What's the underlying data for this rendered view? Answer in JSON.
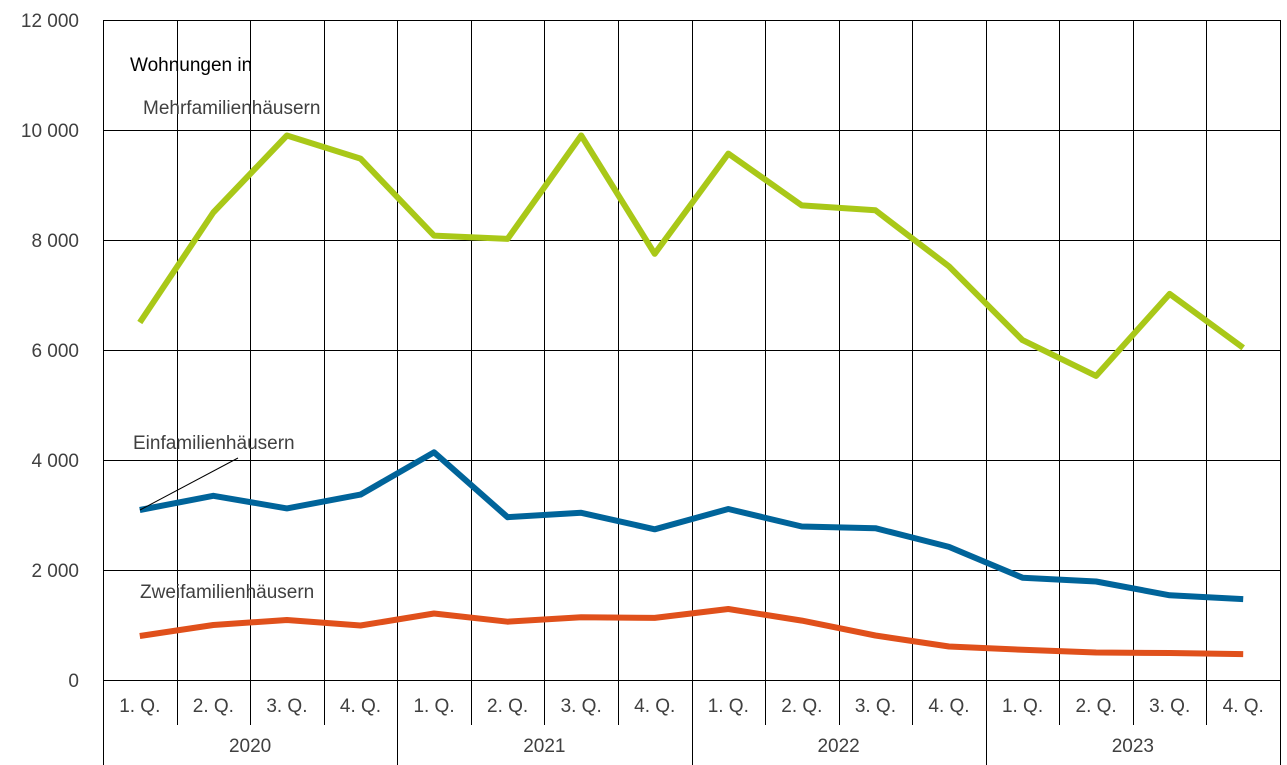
{
  "chart_data": {
    "type": "line",
    "categories": [
      "1. Q.",
      "2. Q.",
      "3. Q.",
      "4. Q.",
      "1. Q.",
      "2. Q.",
      "3. Q.",
      "4. Q.",
      "1. Q.",
      "2. Q.",
      "3. Q.",
      "4. Q.",
      "1. Q.",
      "2. Q.",
      "3. Q.",
      "4. Q."
    ],
    "groups": [
      "2020",
      "2021",
      "2022",
      "2023"
    ],
    "ylim": [
      0,
      12000
    ],
    "yticks": [
      0,
      2000,
      4000,
      6000,
      8000,
      10000,
      12000
    ],
    "ytick_labels": [
      "0",
      "2 000",
      "4 000",
      "6 000",
      "8 000",
      "10 000",
      "12 000"
    ],
    "grid": true,
    "annotation_title": "Wohnungen in",
    "series": [
      {
        "name": "Mehrfamilienhäusern",
        "color": "#a9c818",
        "values": [
          6500,
          8500,
          9900,
          9480,
          8080,
          8020,
          9900,
          7750,
          9570,
          8630,
          8540,
          7520,
          6180,
          5530,
          7020,
          6040
        ]
      },
      {
        "name": "Einfamilienhäusern",
        "color": "#00649a",
        "values": [
          3090,
          3350,
          3120,
          3370,
          4140,
          2960,
          3040,
          2740,
          3110,
          2790,
          2760,
          2420,
          1860,
          1790,
          1540,
          1470
        ]
      },
      {
        "name": "Zweifamilienhäusern",
        "color": "#e0501b",
        "values": [
          800,
          1000,
          1090,
          990,
          1210,
          1060,
          1140,
          1130,
          1290,
          1080,
          810,
          610,
          550,
          500,
          490,
          470
        ]
      }
    ]
  }
}
